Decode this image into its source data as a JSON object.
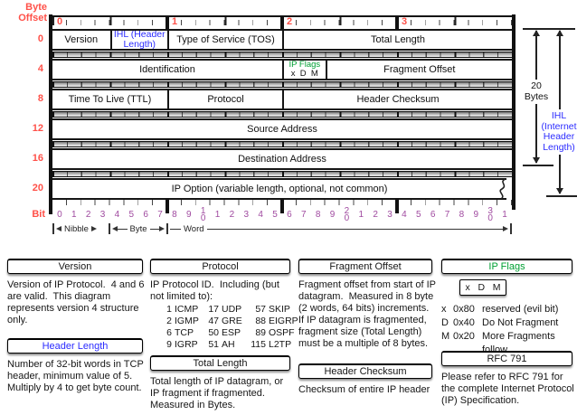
{
  "colors": {
    "red": "#ff5149",
    "blue": "#2b2bff",
    "green": "#00a033",
    "purple": "#a04ba0"
  },
  "diagram": {
    "byte_offset_label": "Byte\nOffset",
    "bit_label": "Bit",
    "byte_numbers": [
      "0",
      "1",
      "2",
      "3"
    ],
    "row_offsets": [
      "0",
      "4",
      "8",
      "12",
      "16",
      "20"
    ],
    "rows": {
      "r0": {
        "version": "Version",
        "ihl": "IHL (Header Length)",
        "tos": "Type of Service (TOS)",
        "total_length": "Total Length"
      },
      "r4": {
        "identification": "Identification",
        "flags_title": "IP Flags",
        "flags_bits": "x  D  M",
        "fragment_offset": "Fragment Offset"
      },
      "r8": {
        "ttl": "Time To Live (TTL)",
        "protocol": "Protocol",
        "header_checksum": "Header Checksum"
      },
      "r12": {
        "source": "Source Address"
      },
      "r16": {
        "destination": "Destination Address"
      },
      "r20": {
        "option": "IP Option (variable length, optional, not common)"
      }
    },
    "bit_numbers": [
      "0",
      "1",
      "2",
      "3",
      "4",
      "5",
      "6",
      "7",
      "8",
      "9",
      "1\n0",
      "1",
      "2",
      "3",
      "4",
      "5",
      "6",
      "7",
      "8",
      "9",
      "2\n0",
      "1",
      "2",
      "3",
      "4",
      "5",
      "6",
      "7",
      "8",
      "9",
      "3\n0",
      "1"
    ],
    "scale": {
      "nibble": "Nibble",
      "byte": "Byte",
      "word": "Word"
    },
    "brackets": {
      "bytes20": "20\nBytes",
      "ihl": "IHL\n(Internet\nHeader\nLength)"
    }
  },
  "notes": {
    "version": {
      "title": "Version",
      "body": "Version of IP Protocol.  4 and 6 are valid.  This diagram represents version 4 structure only."
    },
    "header_length": {
      "title": "Header Length",
      "body": "Number of 32-bit words in TCP header, minimum value of 5.  Multiply by 4 to get byte count."
    },
    "protocol": {
      "title": "Protocol",
      "intro": "IP Protocol ID.  Including (but not limited to):",
      "entries": [
        [
          "1",
          "ICMP"
        ],
        [
          "17",
          "UDP"
        ],
        [
          "57",
          "SKIP"
        ],
        [
          "2",
          "IGMP"
        ],
        [
          "47",
          "GRE"
        ],
        [
          "88",
          "EIGRP"
        ],
        [
          "6",
          "TCP"
        ],
        [
          "50",
          "ESP"
        ],
        [
          "89",
          "OSPF"
        ],
        [
          "9",
          "IGRP"
        ],
        [
          "51",
          "AH"
        ],
        [
          "115",
          "L2TP"
        ]
      ]
    },
    "total_length": {
      "title": "Total Length",
      "body": "Total length of IP datagram, or IP fragment if fragmented.  Measured in Bytes."
    },
    "fragment_offset": {
      "title": "Fragment Offset",
      "body": "Fragment offset from start of IP datagram.  Measured in 8 byte (2 words, 64 bits) increments.  If IP datagram is fragmented, fragment size (Total Length) must be a multiple of 8 bytes."
    },
    "header_checksum": {
      "title": "Header Checksum",
      "body": "Checksum of entire IP header"
    },
    "ip_flags": {
      "title": "IP Flags",
      "box": "x   D   M",
      "legend": [
        {
          "f": "x",
          "h": "0x80",
          "d": "reserved (evil bit)"
        },
        {
          "f": "D",
          "h": "0x40",
          "d": "Do Not Fragment"
        },
        {
          "f": "M",
          "h": "0x20",
          "d": "More Fragments"
        },
        {
          "f": "",
          "h": "",
          "d": "follow"
        }
      ]
    },
    "rfc": {
      "title": "RFC 791",
      "body": "Please refer to RFC 791 for the complete Internet Protocol (IP) Specification."
    }
  }
}
